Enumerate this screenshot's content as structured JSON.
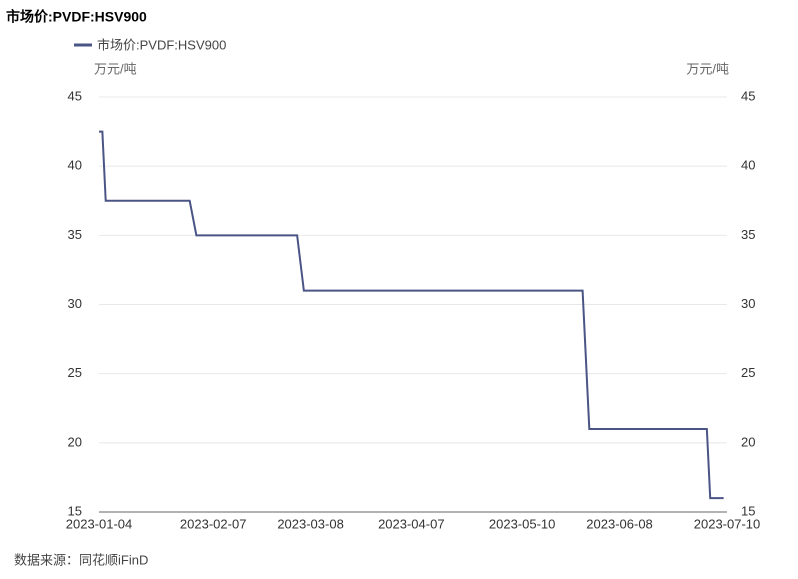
{
  "chart_data": {
    "type": "line",
    "title": "市场价:PVDF:HSV900",
    "y_unit": "万元/吨",
    "y2_unit": "万元/吨",
    "source": "数据来源：同花顺iFinD",
    "x": [
      "2023-01-04",
      "2023-01-05",
      "2023-01-06",
      "2023-01-31",
      "2023-02-02",
      "2023-03-04",
      "2023-03-06",
      "2023-05-28",
      "2023-05-30",
      "2023-07-04",
      "2023-07-05",
      "2023-07-09"
    ],
    "series": [
      {
        "name": "市场价:PVDF:HSV900",
        "color": "#4a5585",
        "values": [
          42.5,
          42.5,
          37.5,
          37.5,
          35,
          35,
          31,
          31,
          21,
          21,
          16,
          16
        ]
      }
    ],
    "xlim": [
      "2023-01-04",
      "2023-07-10"
    ],
    "xticks": [
      "2023-01-04",
      "2023-02-07",
      "2023-03-08",
      "2023-04-07",
      "2023-05-10",
      "2023-06-08",
      "2023-07-10"
    ],
    "ylim": [
      15,
      45
    ],
    "yticks": [
      15,
      20,
      25,
      30,
      35,
      40,
      45
    ],
    "y2lim": [
      15,
      45
    ],
    "y2ticks": [
      15,
      20,
      25,
      30,
      35,
      40,
      45
    ],
    "grid": true,
    "legend": "top-left"
  }
}
